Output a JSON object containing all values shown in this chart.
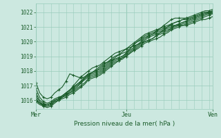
{
  "bg_color": "#cce8e0",
  "grid_color": "#99ccbb",
  "line_color": "#1a5c2a",
  "xlabel_text": "Pression niveau de la mer( hPa )",
  "xtick_labels": [
    "Mer",
    "Jeu",
    "Ven"
  ],
  "ylim": [
    1015.4,
    1022.6
  ],
  "yticks": [
    1016,
    1017,
    1018,
    1019,
    1020,
    1021,
    1022
  ],
  "n_steps": 48,
  "lines": [
    [
      1016.8,
      1016.2,
      1015.9,
      1015.8,
      1015.9,
      1016.1,
      1016.2,
      1016.3,
      1016.5,
      1016.7,
      1016.9,
      1017.1,
      1017.3,
      1017.6,
      1017.8,
      1017.9,
      1018.0,
      1018.1,
      1018.3,
      1018.5,
      1018.7,
      1018.9,
      1019.1,
      1019.3,
      1019.5,
      1019.7,
      1019.9,
      1020.1,
      1020.3,
      1020.5,
      1020.6,
      1020.7,
      1020.8,
      1020.9,
      1021.0,
      1021.1,
      1021.2,
      1021.3,
      1021.4,
      1021.5,
      1021.6,
      1021.7,
      1021.8,
      1021.9,
      1022.0,
      1022.1,
      1022.1,
      1022.2
    ],
    [
      1016.5,
      1016.0,
      1015.8,
      1015.7,
      1015.8,
      1016.0,
      1016.1,
      1016.3,
      1016.5,
      1016.7,
      1016.9,
      1017.1,
      1017.3,
      1017.5,
      1017.7,
      1017.9,
      1018.0,
      1018.2,
      1018.4,
      1018.6,
      1018.8,
      1019.0,
      1019.1,
      1019.2,
      1019.3,
      1019.5,
      1019.8,
      1020.0,
      1020.2,
      1020.4,
      1020.5,
      1020.6,
      1020.7,
      1020.8,
      1020.9,
      1021.0,
      1021.2,
      1021.3,
      1021.4,
      1021.5,
      1021.5,
      1021.6,
      1021.7,
      1021.8,
      1021.9,
      1022.0,
      1022.0,
      1022.1
    ],
    [
      1016.3,
      1015.9,
      1015.7,
      1015.7,
      1015.8,
      1016.0,
      1016.1,
      1016.2,
      1016.4,
      1016.6,
      1016.8,
      1017.0,
      1017.2,
      1017.5,
      1017.7,
      1017.8,
      1017.9,
      1018.0,
      1018.2,
      1018.4,
      1018.6,
      1018.8,
      1018.9,
      1019.0,
      1019.2,
      1019.4,
      1019.6,
      1019.8,
      1020.0,
      1020.2,
      1020.4,
      1020.5,
      1020.6,
      1020.7,
      1020.8,
      1020.9,
      1021.0,
      1021.1,
      1021.2,
      1021.3,
      1021.4,
      1021.5,
      1021.6,
      1021.7,
      1021.8,
      1021.9,
      1022.0,
      1022.0
    ],
    [
      1016.1,
      1015.8,
      1015.7,
      1015.6,
      1015.7,
      1015.9,
      1016.0,
      1016.2,
      1016.4,
      1016.5,
      1016.7,
      1016.9,
      1017.2,
      1017.4,
      1017.6,
      1017.7,
      1017.8,
      1017.9,
      1018.1,
      1018.3,
      1018.5,
      1018.7,
      1018.8,
      1018.9,
      1019.1,
      1019.3,
      1019.5,
      1019.7,
      1019.9,
      1020.1,
      1020.3,
      1020.4,
      1020.5,
      1020.6,
      1020.7,
      1020.8,
      1020.9,
      1021.1,
      1021.2,
      1021.3,
      1021.4,
      1021.5,
      1021.6,
      1021.7,
      1021.8,
      1021.9,
      1021.9,
      1022.0
    ],
    [
      1017.2,
      1016.5,
      1016.2,
      1016.1,
      1016.2,
      1016.5,
      1016.7,
      1016.9,
      1017.3,
      1017.8,
      1017.7,
      1017.6,
      1017.5,
      1017.6,
      1017.8,
      1017.9,
      1018.1,
      1018.3,
      1018.5,
      1018.6,
      1018.7,
      1018.8,
      1018.9,
      1019.0,
      1019.2,
      1019.5,
      1019.8,
      1020.0,
      1020.1,
      1020.3,
      1020.4,
      1020.5,
      1020.7,
      1020.9,
      1021.1,
      1021.3,
      1021.5,
      1021.6,
      1021.6,
      1021.6,
      1021.6,
      1021.6,
      1021.7,
      1021.8,
      1021.9,
      1022.0,
      1022.0,
      1022.1
    ],
    [
      1016.0,
      1015.8,
      1015.6,
      1015.6,
      1015.7,
      1015.9,
      1016.0,
      1016.2,
      1016.3,
      1016.5,
      1016.6,
      1016.8,
      1017.0,
      1017.2,
      1017.5,
      1017.6,
      1017.7,
      1017.8,
      1018.0,
      1018.2,
      1018.4,
      1018.6,
      1018.7,
      1018.9,
      1019.0,
      1019.2,
      1019.4,
      1019.6,
      1019.8,
      1020.0,
      1020.1,
      1020.2,
      1020.4,
      1020.5,
      1020.6,
      1020.7,
      1020.9,
      1021.0,
      1021.1,
      1021.2,
      1021.3,
      1021.4,
      1021.5,
      1021.6,
      1021.7,
      1021.8,
      1021.9,
      1021.9
    ],
    [
      1015.9,
      1015.7,
      1015.6,
      1015.5,
      1015.6,
      1015.8,
      1016.0,
      1016.1,
      1016.2,
      1016.4,
      1016.5,
      1016.7,
      1016.9,
      1017.1,
      1017.4,
      1017.5,
      1017.6,
      1017.7,
      1017.9,
      1018.1,
      1018.3,
      1018.5,
      1018.7,
      1018.8,
      1019.0,
      1019.2,
      1019.4,
      1019.5,
      1019.7,
      1019.9,
      1020.0,
      1020.1,
      1020.2,
      1020.3,
      1020.5,
      1020.6,
      1020.8,
      1020.9,
      1021.0,
      1021.1,
      1021.2,
      1021.3,
      1021.4,
      1021.5,
      1021.6,
      1021.7,
      1021.8,
      1021.9
    ],
    [
      1016.0,
      1015.8,
      1015.7,
      1015.7,
      1015.8,
      1016.0,
      1016.1,
      1016.3,
      1016.5,
      1016.7,
      1017.0,
      1017.3,
      1017.6,
      1017.8,
      1018.0,
      1018.2,
      1018.3,
      1018.4,
      1018.6,
      1018.8,
      1019.0,
      1019.2,
      1019.3,
      1019.4,
      1019.5,
      1019.6,
      1019.7,
      1019.8,
      1019.9,
      1020.0,
      1020.1,
      1020.2,
      1020.4,
      1020.6,
      1020.8,
      1021.0,
      1021.1,
      1021.1,
      1021.1,
      1021.1,
      1021.1,
      1021.2,
      1021.3,
      1021.4,
      1021.5,
      1021.5,
      1021.6,
      1021.7
    ]
  ]
}
